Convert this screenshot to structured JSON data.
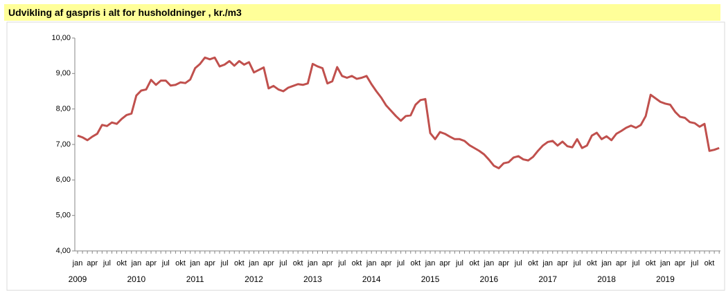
{
  "chart_data": {
    "type": "line",
    "title": "Udvikling af gaspris i alt for husholdninger , kr./m3",
    "categories": [
      "jan",
      null,
      null,
      "apr",
      null,
      null,
      "jul",
      null,
      null,
      "okt",
      null,
      null,
      "jan",
      null,
      null,
      "apr",
      null,
      null,
      "jul",
      null,
      null,
      "okt",
      null,
      null,
      "jan",
      null,
      null,
      "apr",
      null,
      null,
      "jul",
      null,
      null,
      "okt",
      null,
      null,
      "jan",
      null,
      null,
      "apr",
      null,
      null,
      "jul",
      null,
      null,
      "okt",
      null,
      null,
      "jan",
      null,
      null,
      "apr",
      null,
      null,
      "jul",
      null,
      null,
      "okt",
      null,
      null,
      "jan",
      null,
      null,
      "apr",
      null,
      null,
      "jul",
      null,
      null,
      "okt",
      null,
      null,
      "jan",
      null,
      null,
      "apr",
      null,
      null,
      "jul",
      null,
      null,
      "okt",
      null,
      null,
      "jan",
      null,
      null,
      "apr",
      null,
      null,
      "jul",
      null,
      null,
      "okt",
      null,
      null,
      "jan",
      null,
      null,
      "apr",
      null,
      null,
      "jul",
      null,
      null,
      "okt",
      null,
      null,
      "jan",
      null,
      null,
      "apr",
      null,
      null,
      "jul",
      null,
      null,
      "okt",
      null,
      null,
      "jan",
      null,
      null,
      "apr",
      null,
      null,
      "jul",
      null,
      null,
      "okt",
      null,
      null
    ],
    "years": [
      "2009",
      "2010",
      "2011",
      "2012",
      "2013",
      "2014",
      "2015",
      "2016",
      "2017",
      "2018",
      "2019"
    ],
    "series": [
      {
        "color": "#c0504d",
        "values": [
          7.25,
          7.2,
          7.12,
          7.22,
          7.3,
          7.55,
          7.52,
          7.62,
          7.58,
          7.72,
          7.83,
          7.87,
          8.38,
          8.52,
          8.55,
          8.82,
          8.68,
          8.8,
          8.8,
          8.66,
          8.68,
          8.75,
          8.73,
          8.83,
          9.15,
          9.27,
          9.45,
          9.4,
          9.45,
          9.2,
          9.25,
          9.35,
          9.22,
          9.35,
          9.25,
          9.32,
          9.03,
          9.1,
          9.17,
          8.58,
          8.65,
          8.55,
          8.5,
          8.6,
          8.65,
          8.7,
          8.68,
          8.72,
          9.27,
          9.2,
          9.15,
          8.72,
          8.78,
          9.18,
          8.93,
          8.88,
          8.93,
          8.85,
          8.88,
          8.93,
          8.7,
          8.5,
          8.32,
          8.1,
          7.95,
          7.8,
          7.67,
          7.8,
          7.82,
          8.12,
          8.25,
          8.28,
          7.32,
          7.15,
          7.35,
          7.3,
          7.22,
          7.15,
          7.15,
          7.1,
          6.98,
          6.9,
          6.82,
          6.72,
          6.57,
          6.4,
          6.33,
          6.47,
          6.5,
          6.63,
          6.67,
          6.58,
          6.55,
          6.65,
          6.82,
          6.97,
          7.07,
          7.1,
          6.97,
          7.08,
          6.95,
          6.92,
          7.15,
          6.9,
          6.97,
          7.25,
          7.33,
          7.15,
          7.23,
          7.12,
          7.3,
          7.38,
          7.47,
          7.53,
          7.47,
          7.55,
          7.8,
          8.4,
          8.3,
          8.2,
          8.15,
          8.12,
          7.92,
          7.78,
          7.75,
          7.63,
          7.6,
          7.5,
          7.58,
          6.82,
          6.85,
          6.9
        ]
      }
    ],
    "ylim": [
      4,
      10
    ],
    "yticks": [
      {
        "value": 4,
        "label": "4,00"
      },
      {
        "value": 5,
        "label": "5,00"
      },
      {
        "value": 6,
        "label": "6,00"
      },
      {
        "value": 7,
        "label": "7,00"
      },
      {
        "value": 8,
        "label": "8,00"
      },
      {
        "value": 9,
        "label": "9,00"
      },
      {
        "value": 10,
        "label": "10,00"
      }
    ]
  }
}
